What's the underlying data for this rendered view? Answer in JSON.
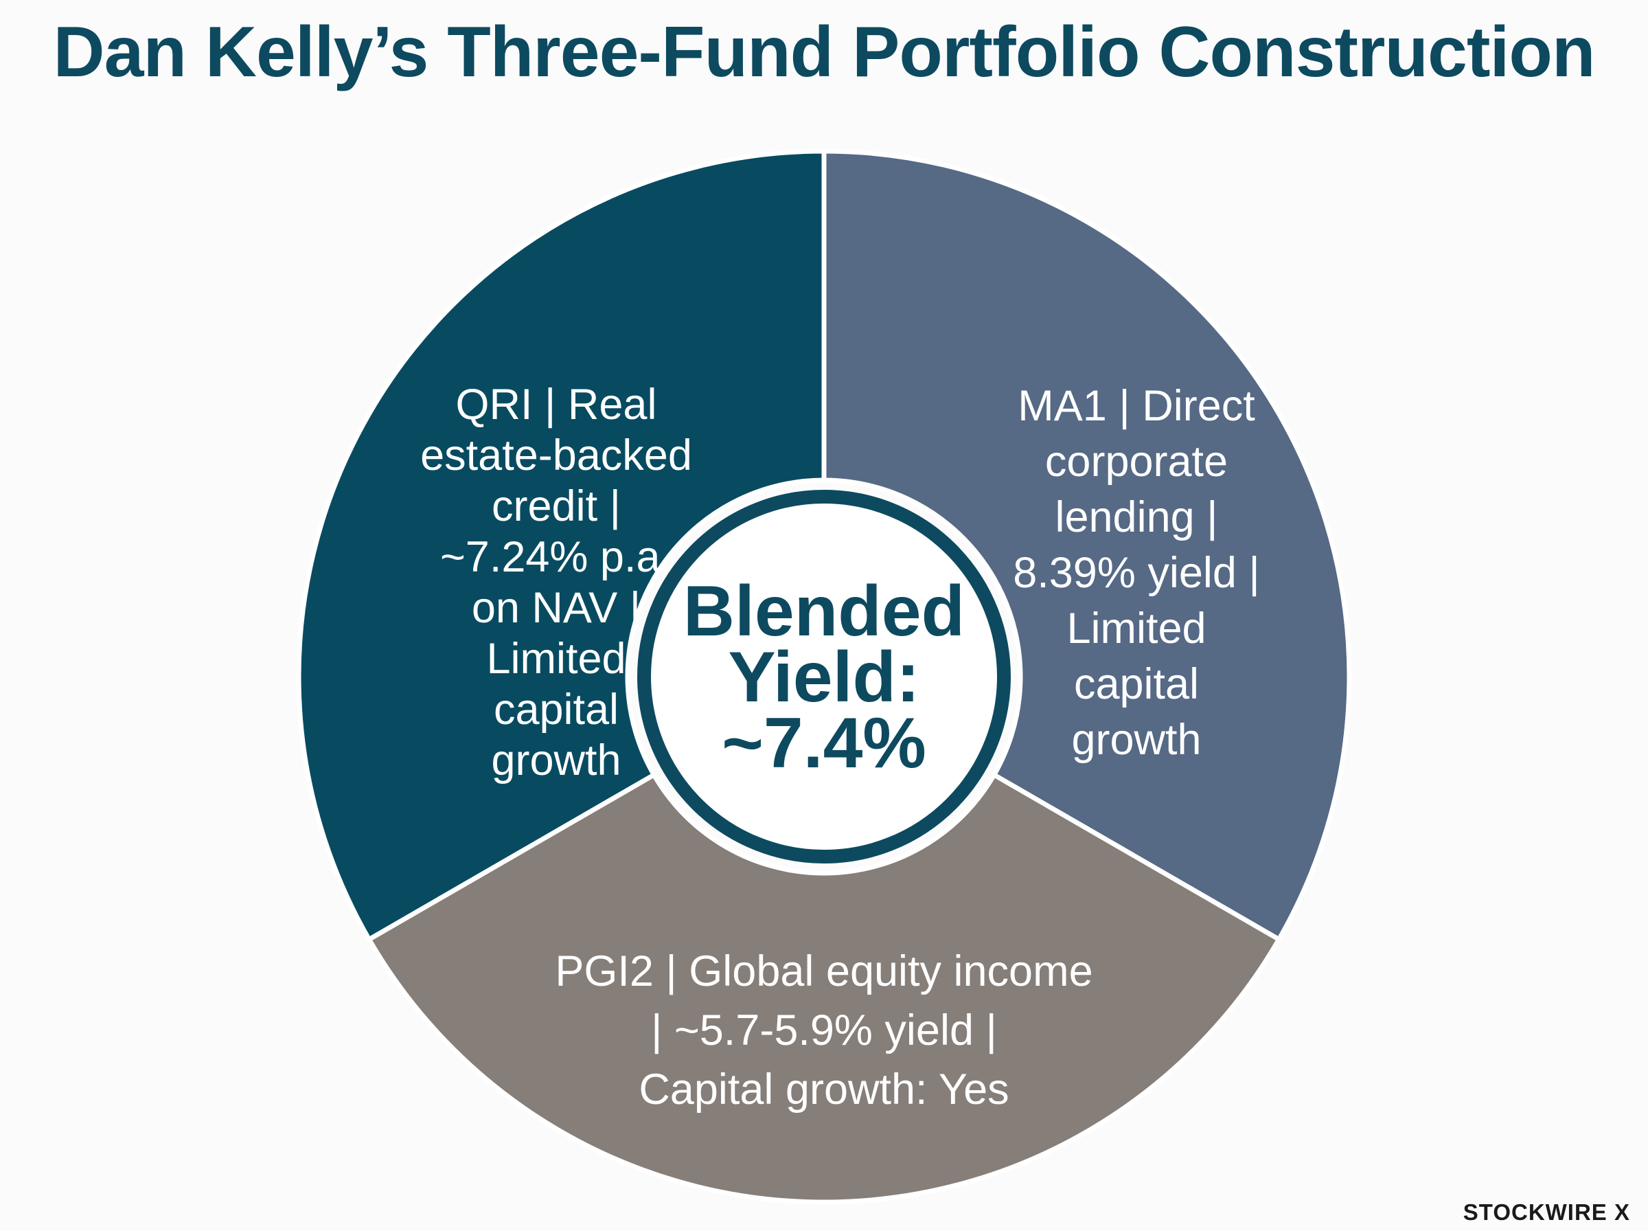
{
  "title": "Dan Kelly’s Three-Fund Portfolio Construction",
  "colors": {
    "title": "#0d4a5f",
    "qri": "#084b61",
    "ma1": "#566985",
    "pgi2": "#867e79",
    "center_ring": "#0d4a5f",
    "center_fill": "#ffffff"
  },
  "chart_data": {
    "type": "pie",
    "title": "Dan Kelly’s Three-Fund Portfolio Construction",
    "slices": [
      {
        "label_lines": [
          "QRI | Real",
          "estate-backed",
          "credit |",
          "~7.24% p.a.",
          "on NAV |",
          "Limited",
          "capital",
          "growth"
        ],
        "value": 33.3,
        "color": "#084b61"
      },
      {
        "label_lines": [
          "MA1 | Direct",
          "corporate",
          "lending |",
          "8.39% yield |",
          "Limited",
          "capital",
          "growth"
        ],
        "value": 33.3,
        "color": "#566985"
      },
      {
        "label_lines": [
          "PGI2 | Global equity income",
          "| ~5.7-5.9% yield |",
          "Capital growth: Yes"
        ],
        "value": 33.3,
        "color": "#867e79"
      }
    ],
    "center_label_lines": [
      "Blended",
      "Yield:",
      "~7.4%"
    ]
  },
  "brand": "STOCKWIRE X"
}
